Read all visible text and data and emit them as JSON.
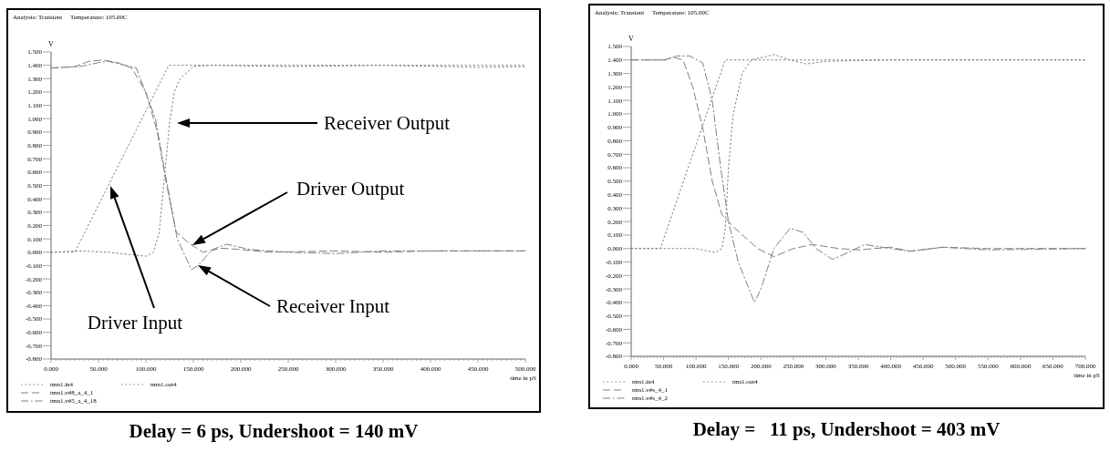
{
  "chart_data": [
    {
      "type": "line",
      "title": "Delay = 6 ps, Undershoot = 140 mV",
      "xlabel": "time in pS",
      "ylabel": "V",
      "xlim": [
        0,
        500
      ],
      "ylim": [
        -0.8,
        1.5
      ],
      "xticks": [
        {
          "value": 0,
          "label": "0.000"
        },
        {
          "value": 50,
          "label": "50.000"
        },
        {
          "value": 100,
          "label": "100.000"
        },
        {
          "value": 150,
          "label": "150.000"
        },
        {
          "value": 200,
          "label": "200.000"
        },
        {
          "value": 250,
          "label": "250.000"
        },
        {
          "value": 300,
          "label": "300.000"
        },
        {
          "value": 350,
          "label": "350.000"
        },
        {
          "value": 400,
          "label": "400.000"
        },
        {
          "value": 450,
          "label": "450.000"
        },
        {
          "value": 500,
          "label": "500.000"
        }
      ],
      "yticks": [
        {
          "value": -0.8,
          "label": "-0.800"
        },
        {
          "value": -0.7,
          "label": "-0.700"
        },
        {
          "value": -0.6,
          "label": "-0.600"
        },
        {
          "value": -0.5,
          "label": "-0.500"
        },
        {
          "value": -0.4,
          "label": "-0.400"
        },
        {
          "value": -0.3,
          "label": "-0.300"
        },
        {
          "value": -0.2,
          "label": "-0.200"
        },
        {
          "value": -0.1,
          "label": "-0.100"
        },
        {
          "value": 0,
          "label": "0.000"
        },
        {
          "value": 0.1,
          "label": "0.100"
        },
        {
          "value": 0.2,
          "label": "0.200"
        },
        {
          "value": 0.3,
          "label": "0.300"
        },
        {
          "value": 0.4,
          "label": "0.400"
        },
        {
          "value": 0.5,
          "label": "0.500"
        },
        {
          "value": 0.6,
          "label": "0.600"
        },
        {
          "value": 0.7,
          "label": "0.700"
        },
        {
          "value": 0.8,
          "label": "0.800"
        },
        {
          "value": 0.9,
          "label": "0.900"
        },
        {
          "value": 1.0,
          "label": "1.000"
        },
        {
          "value": 1.1,
          "label": "1.100"
        },
        {
          "value": 1.2,
          "label": "1.200"
        },
        {
          "value": 1.3,
          "label": "1.300"
        },
        {
          "value": 1.4,
          "label": "1.400"
        },
        {
          "value": 1.5,
          "label": "1.500"
        }
      ],
      "legend": "bottom",
      "grid": false,
      "series": [
        {
          "name": "tmn1.in4",
          "color": "#808080",
          "line_style": "dotted",
          "x": [
            0,
            25,
            124,
            500
          ],
          "values": [
            0,
            0,
            1.4,
            1.4
          ]
        },
        {
          "name": "tmn1.v#8_a_4_1",
          "color": "#808080",
          "line_style": "dashed",
          "x": [
            0,
            25,
            40,
            55,
            70,
            85,
            100,
            112,
            122,
            132,
            145,
            160,
            180,
            200,
            230,
            300,
            350,
            400,
            500
          ],
          "values": [
            1.38,
            1.39,
            1.43,
            1.44,
            1.42,
            1.38,
            1.2,
            0.9,
            0.5,
            0.15,
            0.07,
            0.0,
            0.03,
            0.02,
            0.0,
            0.01,
            0.0,
            0.01,
            0.01
          ]
        },
        {
          "name": "tmn1.v#5_a_4_18",
          "color": "#808080",
          "line_style": "dashdot",
          "x": [
            0,
            30,
            50,
            60,
            90,
            110,
            120,
            133,
            148,
            155,
            170,
            185,
            210,
            250,
            300,
            350,
            400,
            500
          ],
          "values": [
            1.38,
            1.39,
            1.42,
            1.43,
            1.38,
            1.0,
            0.6,
            0.1,
            -0.13,
            -0.1,
            0.02,
            0.06,
            0.02,
            0.0,
            -0.01,
            0.01,
            0.01,
            0.01
          ]
        },
        {
          "name": "tmn1.out4",
          "color": "#808080",
          "line_style": "dotted",
          "x": [
            0,
            30,
            60,
            100,
            108,
            114,
            120,
            125,
            130,
            136,
            150,
            170,
            250,
            350,
            450,
            500
          ],
          "values": [
            0,
            0.01,
            0.0,
            -0.03,
            0.0,
            0.15,
            0.6,
            0.97,
            1.2,
            1.3,
            1.39,
            1.4,
            1.39,
            1.4,
            1.385,
            1.39
          ]
        }
      ],
      "annotations": [
        "Analysis: Transient     Temperature: 105.00C",
        "Receiver Output",
        "Driver Output",
        "Receiver Input",
        "Driver Input"
      ]
    },
    {
      "type": "line",
      "title": "Delay =   11 ps, Undershoot = 403 mV",
      "xlabel": "time in pS",
      "ylabel": "V",
      "xlim": [
        0,
        700
      ],
      "ylim": [
        -0.8,
        1.5
      ],
      "xticks": [
        {
          "value": 0,
          "label": "0.000"
        },
        {
          "value": 50,
          "label": "50.000"
        },
        {
          "value": 100,
          "label": "100.000"
        },
        {
          "value": 150,
          "label": "150.000"
        },
        {
          "value": 200,
          "label": "200.000"
        },
        {
          "value": 250,
          "label": "250.000"
        },
        {
          "value": 300,
          "label": "300.000"
        },
        {
          "value": 350,
          "label": "350.000"
        },
        {
          "value": 400,
          "label": "400.000"
        },
        {
          "value": 450,
          "label": "450.000"
        },
        {
          "value": 500,
          "label": "500.000"
        },
        {
          "value": 550,
          "label": "550.000"
        },
        {
          "value": 600,
          "label": "600.000"
        },
        {
          "value": 650,
          "label": "650.000"
        },
        {
          "value": 700,
          "label": "700.000"
        }
      ],
      "yticks": [
        {
          "value": -0.8,
          "label": "-0.800"
        },
        {
          "value": -0.7,
          "label": "-0.700"
        },
        {
          "value": -0.6,
          "label": "-0.600"
        },
        {
          "value": -0.5,
          "label": "-0.500"
        },
        {
          "value": -0.4,
          "label": "-0.400"
        },
        {
          "value": -0.3,
          "label": "-0.300"
        },
        {
          "value": -0.2,
          "label": "-0.200"
        },
        {
          "value": -0.1,
          "label": "-0.100"
        },
        {
          "value": 0,
          "label": "0.000"
        },
        {
          "value": 0.1,
          "label": "0.100"
        },
        {
          "value": 0.2,
          "label": "0.200"
        },
        {
          "value": 0.3,
          "label": "0.300"
        },
        {
          "value": 0.4,
          "label": "0.400"
        },
        {
          "value": 0.5,
          "label": "0.500"
        },
        {
          "value": 0.6,
          "label": "0.600"
        },
        {
          "value": 0.7,
          "label": "0.700"
        },
        {
          "value": 0.8,
          "label": "0.800"
        },
        {
          "value": 0.9,
          "label": "0.900"
        },
        {
          "value": 1.0,
          "label": "1.000"
        },
        {
          "value": 1.1,
          "label": "1.100"
        },
        {
          "value": 1.2,
          "label": "1.200"
        },
        {
          "value": 1.3,
          "label": "1.300"
        },
        {
          "value": 1.4,
          "label": "1.400"
        },
        {
          "value": 1.5,
          "label": "1.500"
        }
      ],
      "legend": "bottom",
      "grid": false,
      "series": [
        {
          "name": "tms1.in4",
          "color": "#808080",
          "line_style": "dotted",
          "x": [
            0,
            45,
            145,
            700
          ],
          "values": [
            0,
            0,
            1.4,
            1.4
          ]
        },
        {
          "name": "tms1.v#s_4_1",
          "color": "#808080",
          "line_style": "dashed",
          "x": [
            0,
            50,
            65,
            80,
            95,
            110,
            125,
            140,
            160,
            195,
            220,
            250,
            280,
            320,
            350,
            400,
            430,
            480,
            550,
            700
          ],
          "values": [
            1.4,
            1.4,
            1.42,
            1.4,
            1.2,
            0.9,
            0.5,
            0.25,
            0.15,
            0.0,
            -0.06,
            0.0,
            0.03,
            0.0,
            -0.01,
            0.01,
            -0.02,
            0.01,
            0.0,
            0.0
          ]
        },
        {
          "name": "tms1.v#s_4_2",
          "color": "#808080",
          "line_style": "dashdot",
          "x": [
            0,
            55,
            70,
            90,
            110,
            125,
            138,
            150,
            165,
            190,
            200,
            220,
            245,
            265,
            285,
            310,
            325,
            360,
            400,
            430,
            480,
            550,
            700
          ],
          "values": [
            1.4,
            1.4,
            1.43,
            1.43,
            1.38,
            1.1,
            0.6,
            0.2,
            -0.1,
            -0.4,
            -0.3,
            0.0,
            0.15,
            0.12,
            0.0,
            -0.08,
            -0.05,
            0.03,
            0.0,
            -0.02,
            0.01,
            -0.01,
            0.0
          ]
        },
        {
          "name": "tms1.out4",
          "color": "#808080",
          "line_style": "dotted",
          "x": [
            0,
            100,
            130,
            140,
            145,
            150,
            157,
            171,
            185,
            220,
            245,
            270,
            300,
            400,
            700
          ],
          "values": [
            0,
            0,
            -0.03,
            0.0,
            0.15,
            0.6,
            0.99,
            1.3,
            1.4,
            1.44,
            1.4,
            1.37,
            1.39,
            1.4,
            1.4
          ]
        }
      ],
      "annotations": [
        "Analysis: Transient     Temperature: 105.00C"
      ]
    }
  ]
}
